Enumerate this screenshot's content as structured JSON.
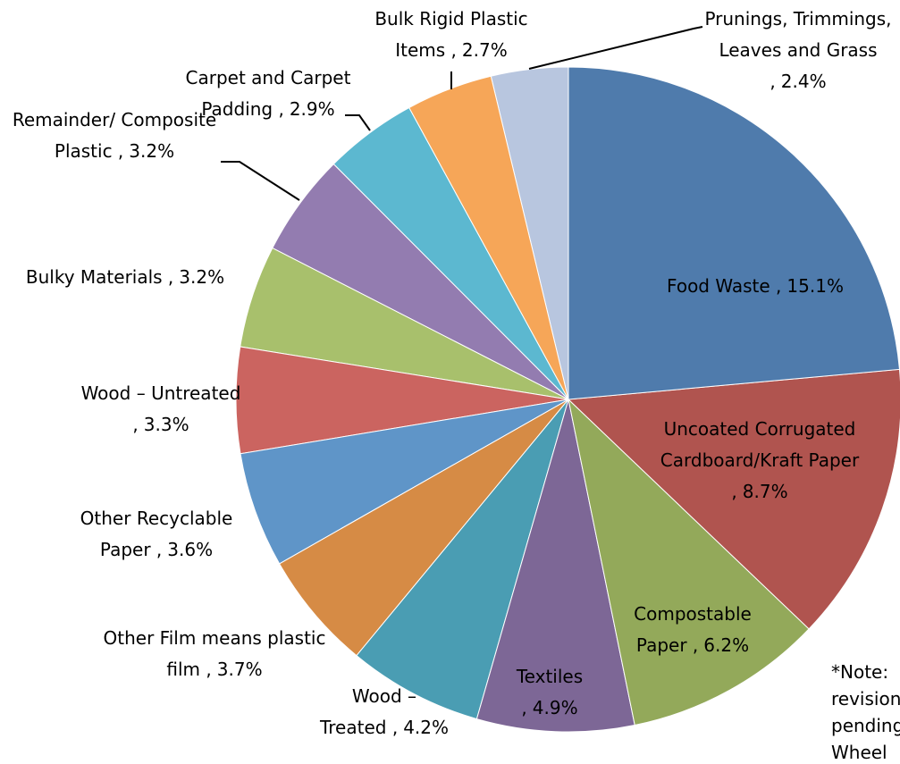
{
  "chart_data": {
    "type": "pie",
    "categories": [
      "Food Waste ,",
      "Uncoated Corrugated Cardboard/Kraft Paper ,",
      "Compostable Paper ,",
      "Textiles ,",
      "Wood – Treated ,",
      "Other Film means plastic film ,",
      "Other Recyclable Paper ,",
      "Wood – Untreated ,",
      "Bulky Materials ,",
      "Remainder/ Composite Plastic ,",
      "Carpet and Carpet Padding ,",
      "Bulk Rigid Plastic Items ,",
      "Prunings, Trimmings, Leaves and Grass ,"
    ],
    "values": [
      15.1,
      8.7,
      6.2,
      4.9,
      4.2,
      3.7,
      3.6,
      3.3,
      3.2,
      3.2,
      2.9,
      2.7,
      2.4
    ],
    "value_labels": [
      "15.1%",
      "8.7%",
      "6.2%",
      "4.9%",
      "4.2%",
      "3.7%",
      "3.6%",
      "3.3%",
      "3.2%",
      "3.2%",
      "2.9%",
      "2.7%",
      "2.4%"
    ],
    "colors": [
      "#4f7bac",
      "#b0544f",
      "#93a95a",
      "#7d6796",
      "#4a9db3",
      "#d68b45",
      "#5f95c8",
      "#cb6460",
      "#a8c06c",
      "#937cb0",
      "#5cb8d0",
      "#f6a658",
      "#b8c6df"
    ],
    "annotation": "*Note: revision pending Wheel"
  }
}
